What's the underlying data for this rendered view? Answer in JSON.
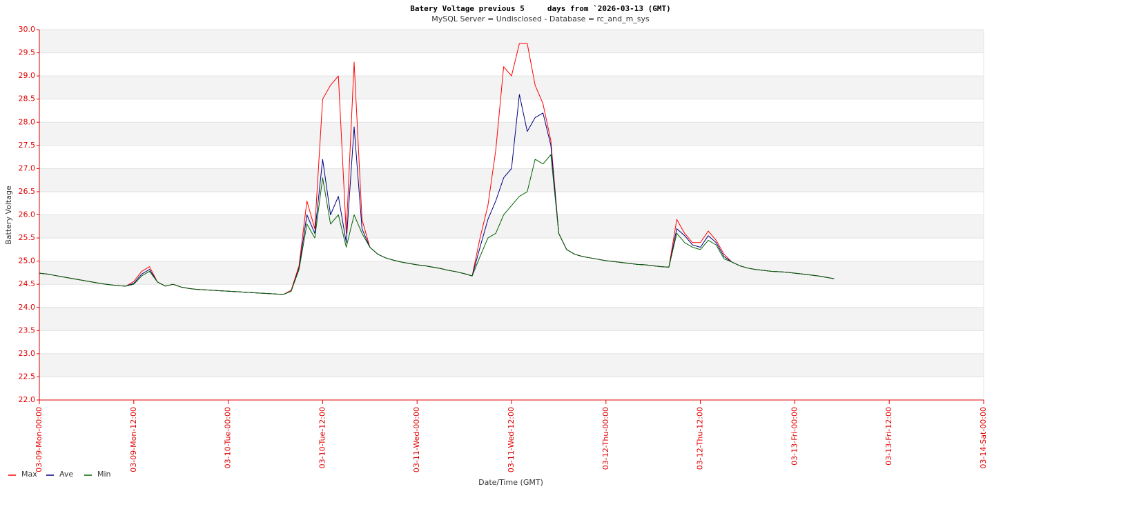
{
  "chart_data": {
    "type": "line",
    "title": "Batery Voltage previous 5     days from `2026-03-13 (GMT)",
    "subtitle": "MySQL Server = Undisclosed - Database = rc_and_m_sys",
    "ylabel": "Battery Voltage",
    "xlabel": "Date/Time (GMT)",
    "xlim": [
      0,
      120
    ],
    "ylim": [
      22,
      30
    ],
    "xticks": [
      {
        "value": 0,
        "label": "03-09-Mon-00:00"
      },
      {
        "value": 12,
        "label": "03-09-Mon-12:00"
      },
      {
        "value": 24,
        "label": "03-10-Tue-00:00"
      },
      {
        "value": 36,
        "label": "03-10-Tue-12:00"
      },
      {
        "value": 48,
        "label": "03-11-Wed-00:00"
      },
      {
        "value": 60,
        "label": "03-11-Wed-12:00"
      },
      {
        "value": 72,
        "label": "03-12-Thu-00:00"
      },
      {
        "value": 84,
        "label": "03-12-Thu-12:00"
      },
      {
        "value": 96,
        "label": "03-13-Fri-00:00"
      },
      {
        "value": 108,
        "label": "03-13-Fri-12:00"
      },
      {
        "value": 120,
        "label": "03-14-Sat-00:00"
      }
    ],
    "yticks": [
      {
        "value": 22,
        "label": "22.0"
      },
      22.5,
      {
        "value": 23,
        "label": "23.0"
      },
      23.5,
      {
        "value": 24,
        "label": "24.0"
      },
      24.5,
      {
        "value": 25,
        "label": "25.0"
      },
      25.5,
      {
        "value": 26,
        "label": "26.0"
      },
      26.5,
      {
        "value": 27,
        "label": "27.0"
      },
      27.5,
      {
        "value": 28,
        "label": "28.0"
      },
      28.5,
      {
        "value": 29,
        "label": "29.0"
      },
      29.5,
      {
        "value": 30,
        "label": "30.0"
      }
    ],
    "grid": true,
    "legend": "bottom-left",
    "x": [
      0,
      1,
      2,
      3,
      4,
      5,
      6,
      7,
      8,
      9,
      10,
      11,
      12,
      13,
      14,
      15,
      16,
      17,
      18,
      19,
      20,
      21,
      22,
      23,
      24,
      25,
      26,
      27,
      28,
      29,
      30,
      31,
      32,
      33,
      34,
      35,
      36,
      37,
      38,
      39,
      40,
      41,
      42,
      43,
      44,
      45,
      46,
      47,
      48,
      49,
      50,
      51,
      52,
      53,
      54,
      55,
      56,
      57,
      58,
      59,
      60,
      61,
      62,
      63,
      64,
      65,
      66,
      67,
      68,
      69,
      70,
      71,
      72,
      73,
      74,
      75,
      76,
      77,
      78,
      79,
      80,
      81,
      82,
      83,
      84,
      85,
      86,
      87,
      88,
      89,
      90,
      91,
      92,
      93,
      94,
      95,
      96,
      97,
      98,
      99,
      100,
      101
    ],
    "series": [
      {
        "name": "Max",
        "color": "#ff0000",
        "values": [
          24.74,
          24.72,
          24.69,
          24.66,
          24.63,
          24.6,
          24.57,
          24.54,
          24.51,
          24.49,
          24.47,
          24.46,
          24.56,
          24.78,
          24.88,
          24.55,
          24.46,
          24.5,
          24.44,
          24.41,
          24.39,
          24.38,
          24.37,
          24.36,
          24.35,
          24.34,
          24.33,
          24.32,
          24.31,
          24.3,
          24.29,
          24.28,
          24.37,
          24.9,
          26.3,
          25.7,
          28.5,
          28.8,
          29.0,
          25.6,
          29.3,
          25.9,
          25.3,
          25.15,
          25.07,
          25.02,
          24.98,
          24.95,
          24.92,
          24.9,
          24.87,
          24.84,
          24.8,
          24.77,
          24.73,
          24.68,
          25.5,
          26.2,
          27.4,
          29.2,
          29.0,
          29.7,
          29.7,
          28.8,
          28.4,
          27.6,
          25.6,
          25.25,
          25.15,
          25.1,
          25.07,
          25.04,
          25.01,
          24.99,
          24.97,
          24.95,
          24.93,
          24.92,
          24.9,
          24.88,
          24.87,
          25.9,
          25.6,
          25.4,
          25.4,
          25.65,
          25.45,
          25.15,
          24.98,
          24.9,
          24.85,
          24.82,
          24.8,
          24.78,
          24.77,
          24.76,
          24.74,
          24.72,
          24.7,
          24.68,
          24.65,
          24.62
        ]
      },
      {
        "name": "Ave",
        "color": "#000080",
        "values": [
          24.74,
          24.72,
          24.69,
          24.66,
          24.63,
          24.6,
          24.57,
          24.54,
          24.51,
          24.49,
          24.47,
          24.46,
          24.52,
          24.72,
          24.82,
          24.55,
          24.46,
          24.5,
          24.44,
          24.41,
          24.39,
          24.38,
          24.37,
          24.36,
          24.35,
          24.34,
          24.33,
          24.32,
          24.31,
          24.3,
          24.29,
          24.28,
          24.35,
          24.85,
          26.0,
          25.6,
          27.2,
          26.0,
          26.4,
          25.4,
          27.9,
          25.7,
          25.3,
          25.15,
          25.07,
          25.02,
          24.98,
          24.95,
          24.92,
          24.9,
          24.87,
          24.84,
          24.8,
          24.77,
          24.73,
          24.68,
          25.3,
          25.9,
          26.3,
          26.8,
          27.0,
          28.6,
          27.8,
          28.1,
          28.2,
          27.5,
          25.6,
          25.25,
          25.15,
          25.1,
          25.07,
          25.04,
          25.01,
          24.99,
          24.97,
          24.95,
          24.93,
          24.92,
          24.9,
          24.88,
          24.87,
          25.7,
          25.55,
          25.35,
          25.3,
          25.55,
          25.4,
          25.1,
          24.98,
          24.9,
          24.85,
          24.82,
          24.8,
          24.78,
          24.77,
          24.76,
          24.74,
          24.72,
          24.7,
          24.68,
          24.65,
          24.62
        ]
      },
      {
        "name": "Min",
        "color": "#006400",
        "values": [
          24.74,
          24.72,
          24.69,
          24.66,
          24.63,
          24.6,
          24.57,
          24.54,
          24.51,
          24.49,
          24.47,
          24.46,
          24.5,
          24.68,
          24.78,
          24.55,
          24.46,
          24.5,
          24.44,
          24.41,
          24.39,
          24.38,
          24.37,
          24.36,
          24.35,
          24.34,
          24.33,
          24.32,
          24.31,
          24.3,
          24.29,
          24.28,
          24.35,
          24.82,
          25.8,
          25.5,
          26.8,
          25.8,
          26.0,
          25.3,
          26.0,
          25.6,
          25.3,
          25.15,
          25.07,
          25.02,
          24.98,
          24.95,
          24.92,
          24.9,
          24.87,
          24.84,
          24.8,
          24.77,
          24.73,
          24.68,
          25.1,
          25.5,
          25.6,
          26.0,
          26.2,
          26.4,
          26.5,
          27.2,
          27.1,
          27.3,
          25.6,
          25.25,
          25.15,
          25.1,
          25.07,
          25.04,
          25.01,
          24.99,
          24.97,
          24.95,
          24.93,
          24.92,
          24.9,
          24.88,
          24.87,
          25.6,
          25.4,
          25.3,
          25.25,
          25.45,
          25.35,
          25.05,
          24.98,
          24.9,
          24.85,
          24.82,
          24.8,
          24.78,
          24.77,
          24.76,
          24.74,
          24.72,
          24.7,
          24.68,
          24.65,
          24.62
        ]
      }
    ]
  }
}
